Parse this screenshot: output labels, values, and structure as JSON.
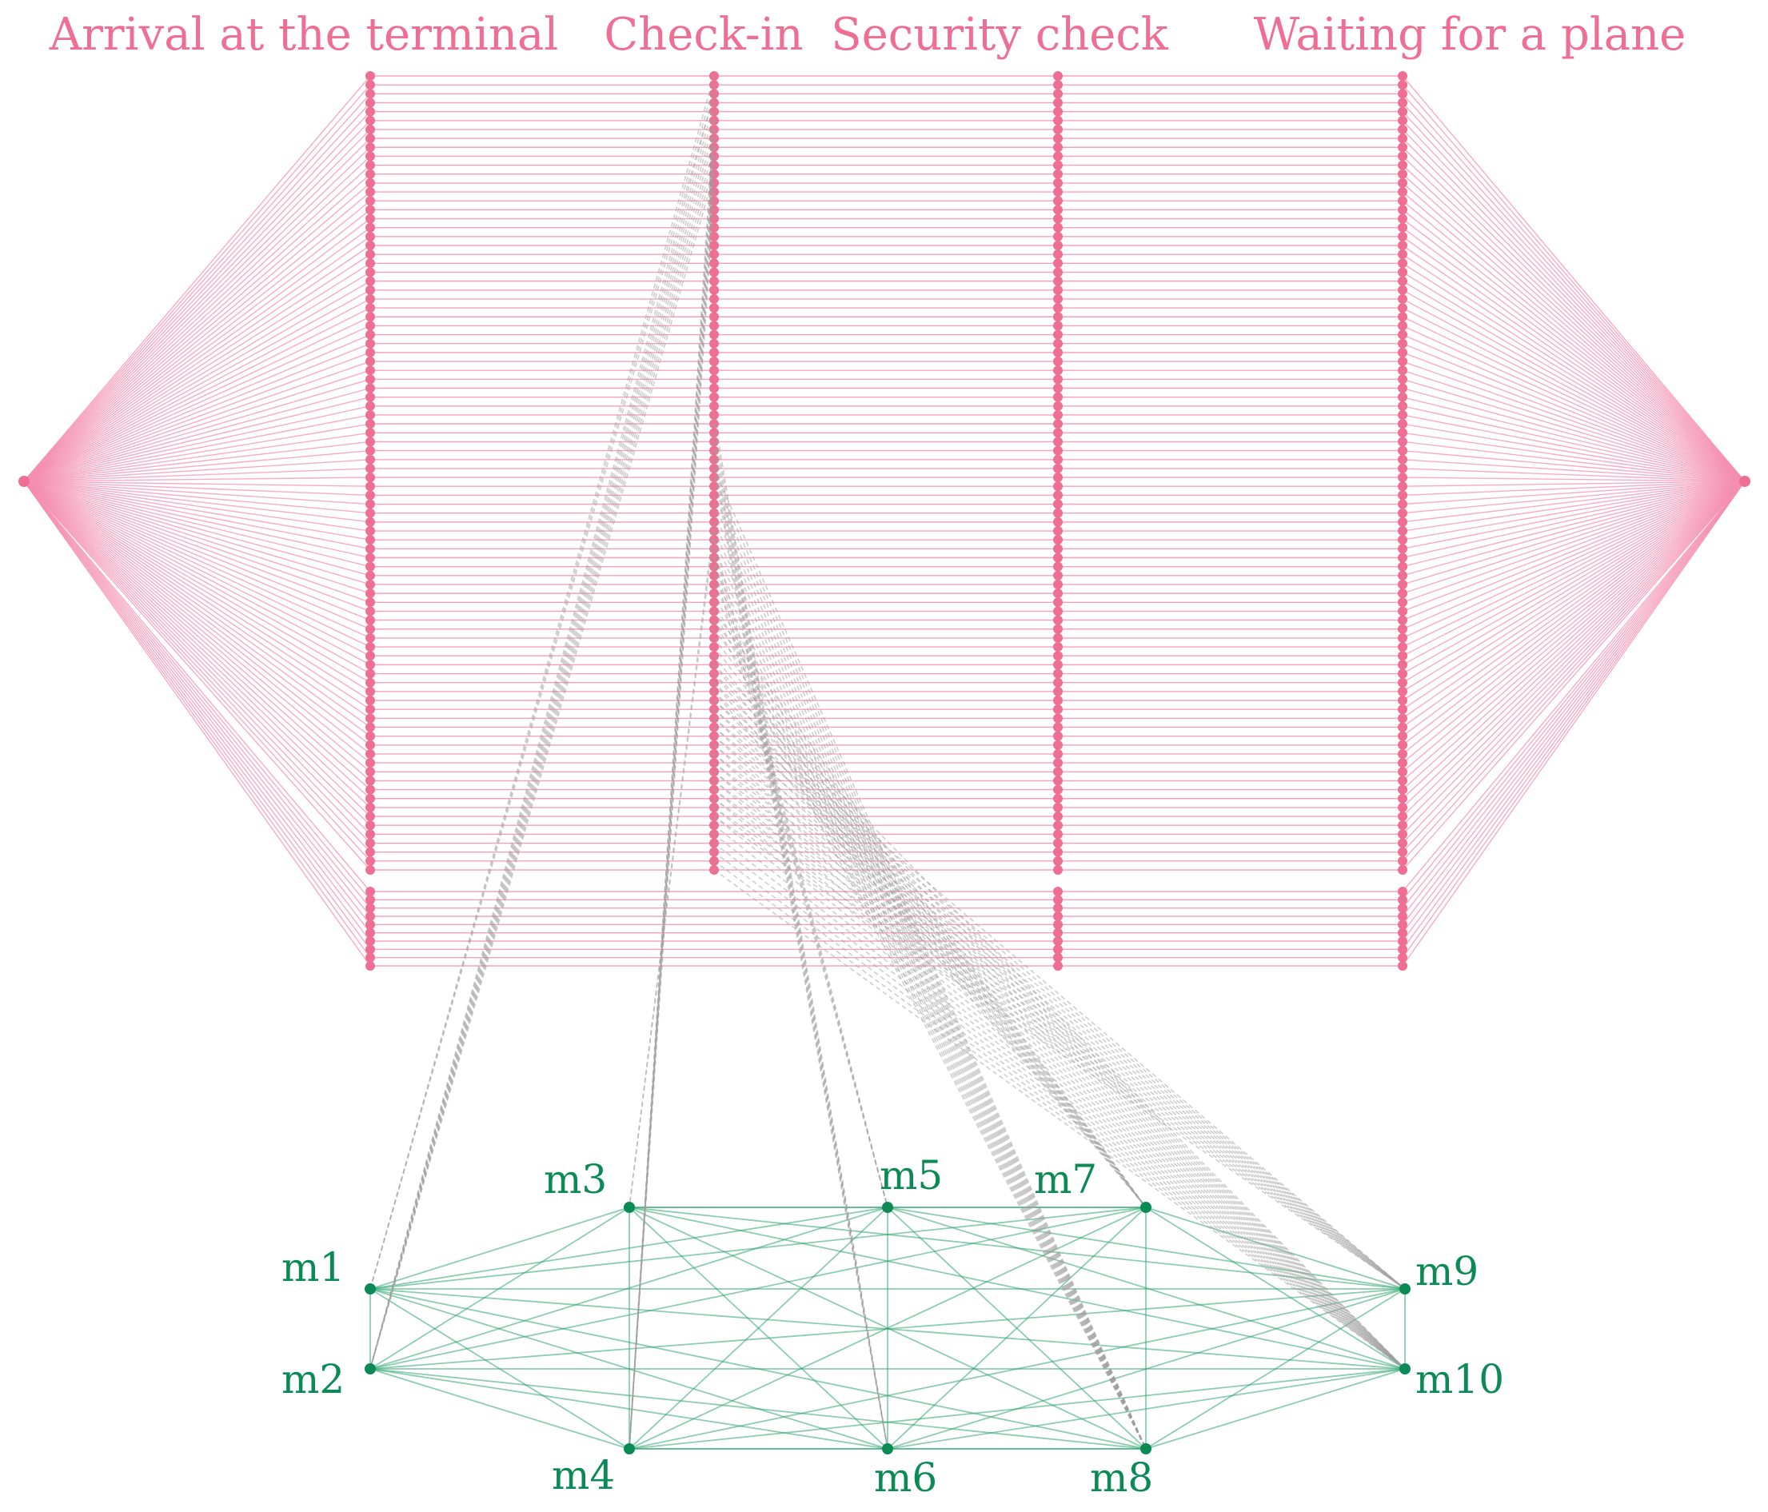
{
  "colors": {
    "pipeline": "#f48fb1",
    "pipeline_node": "#ee6f93",
    "stage_title": "#ee6f93",
    "mesh_edge": "#2ea46f",
    "mesh_node": "#0b8a55",
    "machine_label": "#0b8a55",
    "assignment_edge": "#9e9e9e"
  },
  "diagram": {
    "stages": [
      {
        "id": "arrival",
        "title": "Arrival at the terminal"
      },
      {
        "id": "checkin",
        "title": "Check-in"
      },
      {
        "id": "security",
        "title": "Security check"
      },
      {
        "id": "waiting",
        "title": "Waiting for a plane"
      }
    ],
    "tasks_per_stage": 100,
    "machines": [
      {
        "id": "m1",
        "label": "m1"
      },
      {
        "id": "m2",
        "label": "m2"
      },
      {
        "id": "m3",
        "label": "m3"
      },
      {
        "id": "m4",
        "label": "m4"
      },
      {
        "id": "m5",
        "label": "m5"
      },
      {
        "id": "m6",
        "label": "m6"
      },
      {
        "id": "m7",
        "label": "m7"
      },
      {
        "id": "m8",
        "label": "m8"
      },
      {
        "id": "m9",
        "label": "m9"
      },
      {
        "id": "m10",
        "label": "m10"
      }
    ],
    "mesh": "fully connected"
  }
}
